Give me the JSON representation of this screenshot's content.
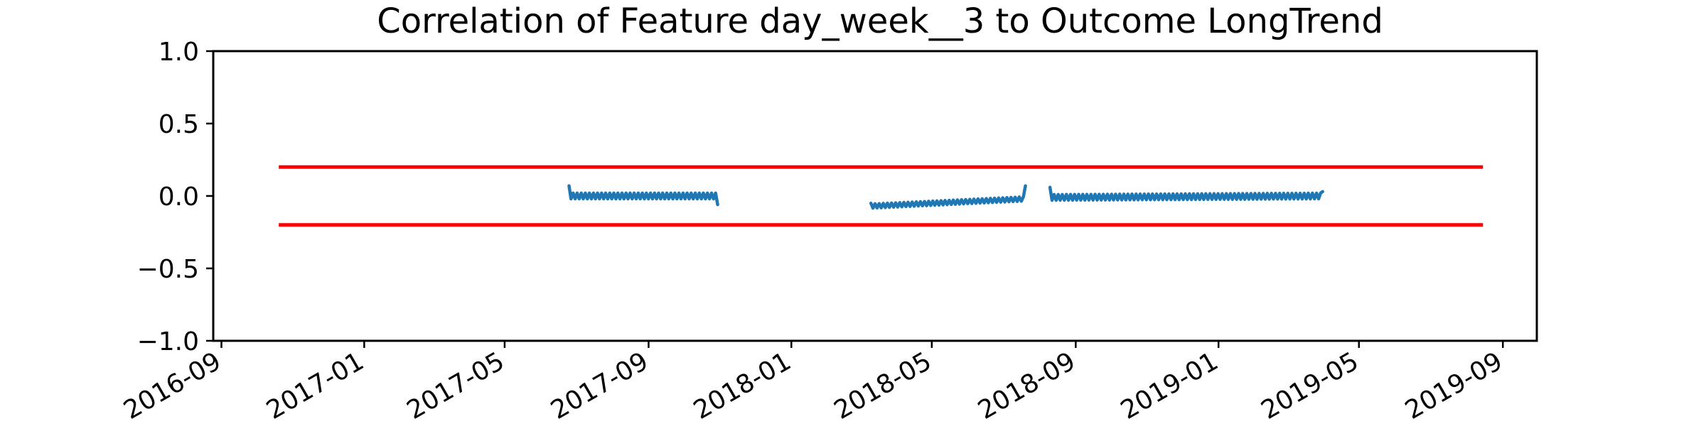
{
  "chart_data": {
    "type": "line",
    "title": "Correlation of Feature day_week__3 to Outcome LongTrend",
    "xlabel": "",
    "ylabel": "",
    "x_axis": {
      "type": "date",
      "range": [
        "2016-08-25",
        "2019-09-30"
      ],
      "ticks": [
        "2016-09-01",
        "2017-01-01",
        "2017-05-01",
        "2017-09-01",
        "2018-01-01",
        "2018-05-01",
        "2018-09-01",
        "2019-01-01",
        "2019-05-01",
        "2019-09-01"
      ],
      "tick_labels": [
        "2016-09",
        "2017-01",
        "2017-05",
        "2017-09",
        "2018-01",
        "2018-05",
        "2018-09",
        "2019-01",
        "2019-05",
        "2019-09"
      ]
    },
    "y_axis": {
      "range": [
        -1.0,
        1.0
      ],
      "ticks": [
        1.0,
        0.5,
        0.0,
        -0.5,
        -1.0
      ],
      "tick_labels": [
        "1.0",
        "0.5",
        "0.0",
        "−0.5",
        "−1.0"
      ]
    },
    "grid": false,
    "colors": {
      "series": "#1f77b4",
      "threshold": "#ff0000"
    },
    "thresholds": [
      {
        "y": 0.2,
        "x_range": [
          "2016-10-20",
          "2019-08-15"
        ]
      },
      {
        "y": -0.2,
        "x_range": [
          "2016-10-20",
          "2019-08-15"
        ]
      }
    ],
    "series": [
      {
        "pattern": "zigzag",
        "segments": [
          {
            "x": [
              "2017-06-25",
              "2017-10-30"
            ],
            "baseline": [
              0.0,
              0.0
            ],
            "amplitude": 0.04,
            "period_days": 3.5,
            "start": {
              "x": "2017-06-25",
              "y": 0.07
            },
            "end": {
              "x": "2017-10-30",
              "y": -0.06
            }
          },
          {
            "x": [
              "2018-03-10",
              "2018-07-20"
            ],
            "baseline": [
              -0.07,
              -0.02
            ],
            "amplitude": 0.03,
            "period_days": 3.5,
            "start": {
              "x": "2018-03-10",
              "y": -0.05
            },
            "end": {
              "x": "2018-07-20",
              "y": 0.07
            }
          },
          {
            "x": [
              "2018-08-10",
              "2019-03-31"
            ],
            "baseline": [
              -0.01,
              0.0
            ],
            "amplitude": 0.04,
            "period_days": 3.5,
            "start": {
              "x": "2018-08-10",
              "y": 0.06
            },
            "end": {
              "x": "2019-03-31",
              "y": 0.03
            }
          }
        ]
      }
    ]
  }
}
